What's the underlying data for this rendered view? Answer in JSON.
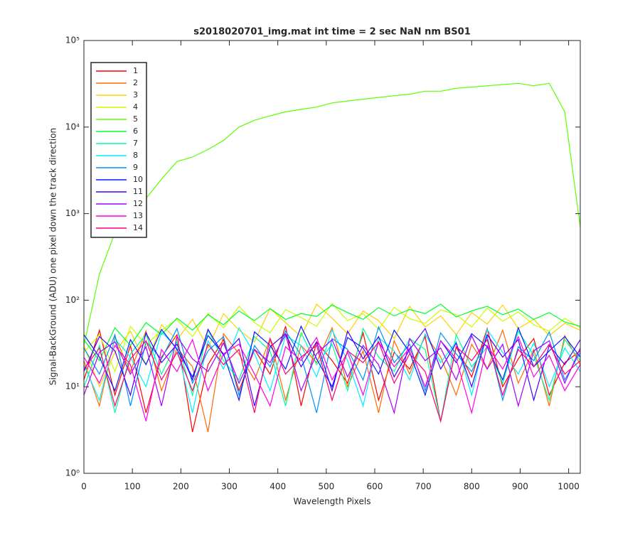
{
  "chart_data": {
    "type": "line",
    "title": "s2018020701_img.mat int time = 2 sec  NaN nm BS01",
    "xlabel": "Wavelength Pixels",
    "ylabel": "Signal-BackGround (ADU) one pixel down the track direction",
    "x": [
      0,
      32,
      64,
      96,
      128,
      160,
      192,
      224,
      256,
      288,
      320,
      352,
      384,
      416,
      448,
      480,
      512,
      544,
      576,
      608,
      640,
      672,
      704,
      736,
      768,
      800,
      832,
      864,
      896,
      928,
      960,
      992,
      1024
    ],
    "xlim": [
      0,
      1024
    ],
    "xticks": [
      0,
      100,
      200,
      300,
      400,
      500,
      600,
      700,
      800,
      900,
      1000
    ],
    "ylim": [
      1,
      100000
    ],
    "yscale": "log",
    "yticks": [
      {
        "value": 1,
        "label": "10⁰"
      },
      {
        "value": 10,
        "label": "10¹"
      },
      {
        "value": 100,
        "label": "10²"
      },
      {
        "value": 1000,
        "label": "10³"
      },
      {
        "value": 10000,
        "label": "10⁴"
      },
      {
        "value": 100000,
        "label": "10⁵"
      }
    ],
    "legend": "upper left",
    "series": [
      {
        "name": "1",
        "color": "#ff0000",
        "values": [
          12,
          45,
          8,
          30,
          5,
          22,
          40,
          3,
          18,
          35,
          9,
          27,
          14,
          50,
          6,
          33,
          20,
          11,
          42,
          7,
          25,
          16,
          38,
          4,
          29,
          13,
          47,
          10,
          21,
          36,
          8,
          19,
          26
        ]
      },
      {
        "name": "2",
        "color": "#ff6a00",
        "values": [
          20,
          6,
          38,
          15,
          44,
          9,
          28,
          17,
          3,
          41,
          24,
          12,
          36,
          7,
          30,
          19,
          48,
          10,
          26,
          5,
          34,
          14,
          40,
          22,
          8,
          31,
          16,
          45,
          11,
          27,
          6,
          39,
          18
        ]
      },
      {
        "name": "3",
        "color": "#ffd000",
        "values": [
          30,
          10,
          25,
          44,
          18,
          52,
          35,
          60,
          28,
          70,
          45,
          33,
          80,
          55,
          38,
          90,
          62,
          41,
          75,
          58,
          36,
          85,
          49,
          66,
          40,
          72,
          53,
          88,
          47,
          60,
          39,
          54,
          45
        ]
      },
      {
        "name": "4",
        "color": "#c8ff00",
        "values": [
          25,
          40,
          15,
          50,
          30,
          45,
          60,
          38,
          70,
          48,
          85,
          55,
          42,
          78,
          63,
          50,
          92,
          58,
          70,
          46,
          83,
          61,
          54,
          77,
          68,
          49,
          81,
          57,
          73,
          52,
          44,
          62,
          48
        ]
      },
      {
        "name": "5",
        "color": "#5cff00",
        "values": [
          30,
          200,
          600,
          900,
          1500,
          2500,
          4000,
          4500,
          5500,
          7000,
          10000,
          12000,
          13500,
          15000,
          16000,
          17000,
          19000,
          20000,
          21000,
          22000,
          23000,
          24000,
          26000,
          26000,
          28000,
          29000,
          30000,
          31000,
          32000,
          30000,
          32000,
          15000,
          700
        ]
      },
      {
        "name": "6",
        "color": "#00ff2e",
        "values": [
          35,
          20,
          48,
          30,
          55,
          40,
          62,
          45,
          68,
          52,
          75,
          58,
          80,
          60,
          70,
          65,
          88,
          72,
          60,
          82,
          66,
          78,
          70,
          90,
          64,
          75,
          85,
          68,
          79,
          60,
          72,
          56,
          50
        ]
      },
      {
        "name": "7",
        "color": "#00ff9c",
        "values": [
          10,
          30,
          5,
          24,
          40,
          14,
          33,
          8,
          45,
          20,
          12,
          38,
          26,
          6,
          42,
          18,
          31,
          9,
          47,
          22,
          15,
          36,
          27,
          4,
          40,
          17,
          29,
          11,
          44,
          23,
          7,
          35,
          20
        ]
      },
      {
        "name": "8",
        "color": "#00f0ff",
        "values": [
          18,
          7,
          36,
          22,
          10,
          43,
          28,
          5,
          34,
          16,
          48,
          24,
          9,
          39,
          30,
          13,
          45,
          20,
          6,
          37,
          26,
          12,
          41,
          19,
          33,
          8,
          46,
          25,
          14,
          32,
          10,
          28,
          15
        ]
      },
      {
        "name": "9",
        "color": "#0090ff",
        "values": [
          28,
          14,
          40,
          6,
          33,
          21,
          47,
          11,
          26,
          38,
          8,
          30,
          17,
          44,
          23,
          5,
          36,
          27,
          12,
          49,
          19,
          31,
          9,
          42,
          24,
          15,
          38,
          7,
          29,
          20,
          43,
          12,
          25
        ]
      },
      {
        "name": "10",
        "color": "#0022ff",
        "values": [
          40,
          22,
          9,
          35,
          18,
          46,
          27,
          13,
          39,
          24,
          7,
          43,
          30,
          16,
          50,
          21,
          10,
          37,
          28,
          14,
          45,
          25,
          8,
          34,
          19,
          41,
          29,
          12,
          48,
          17,
          26,
          38,
          22
        ]
      },
      {
        "name": "11",
        "color": "#4400ff",
        "values": [
          15,
          38,
          26,
          8,
          42,
          19,
          31,
          12,
          46,
          23,
          36,
          6,
          29,
          41,
          17,
          33,
          9,
          44,
          21,
          38,
          13,
          27,
          47,
          16,
          32,
          10,
          40,
          22,
          35,
          7,
          30,
          18,
          35
        ]
      },
      {
        "name": "12",
        "color": "#a800ff",
        "values": [
          8,
          25,
          33,
          14,
          29,
          6,
          38,
          21,
          15,
          32,
          11,
          27,
          19,
          40,
          9,
          24,
          35,
          13,
          30,
          18,
          5,
          36,
          20,
          28,
          12,
          39,
          16,
          31,
          6,
          26,
          34,
          11,
          28
        ]
      },
      {
        "name": "13",
        "color": "#ff00e6",
        "values": [
          22,
          11,
          30,
          18,
          4,
          27,
          15,
          35,
          9,
          24,
          31,
          14,
          6,
          29,
          20,
          37,
          12,
          25,
          8,
          33,
          17,
          28,
          10,
          34,
          21,
          5,
          30,
          16,
          38,
          13,
          23,
          9,
          18
        ]
      },
      {
        "name": "14",
        "color": "#ff0078",
        "values": [
          16,
          28,
          6,
          21,
          34,
          12,
          25,
          9,
          31,
          18,
          27,
          5,
          36,
          14,
          22,
          30,
          7,
          26,
          19,
          33,
          11,
          24,
          15,
          4,
          29,
          20,
          35,
          8,
          27,
          17,
          31,
          14,
          20
        ]
      }
    ]
  }
}
